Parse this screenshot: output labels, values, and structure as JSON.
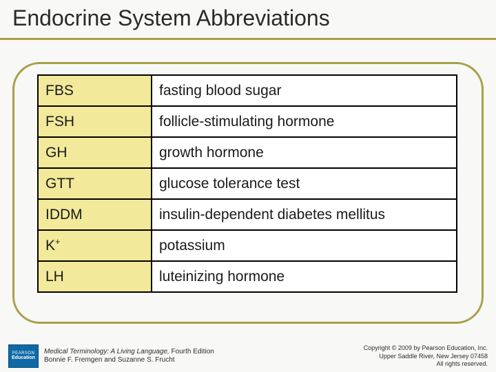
{
  "title": "Endocrine System Abbreviations",
  "accent_color": "#a8a049",
  "table": {
    "abbr_col_bg": "#f2e99a",
    "def_col_bg": "#ffffff",
    "border_color": "#000000",
    "rows": [
      {
        "abbr": "FBS",
        "def": "fasting blood sugar"
      },
      {
        "abbr": "FSH",
        "def": "follicle-stimulating hormone"
      },
      {
        "abbr": "GH",
        "def": "growth hormone"
      },
      {
        "abbr": "GTT",
        "def": "glucose tolerance test"
      },
      {
        "abbr": "IDDM",
        "def": "insulin-dependent diabetes mellitus"
      },
      {
        "abbr": "K",
        "sup": "+",
        "def": "potassium"
      },
      {
        "abbr": "LH",
        "def": "luteinizing hormone"
      }
    ]
  },
  "footer": {
    "logo": {
      "line1": "PEARSON",
      "line2": "Education"
    },
    "book_title": "Medical Terminology: A Living Language,",
    "edition": " Fourth Edition",
    "authors": "Bonnie F. Fremgen and Suzanne S. Frucht",
    "copyright1": "Copyright © 2009 by Pearson Education, Inc.",
    "copyright2": "Upper Saddle River, New Jersey 07458",
    "copyright3": "All rights reserved."
  }
}
